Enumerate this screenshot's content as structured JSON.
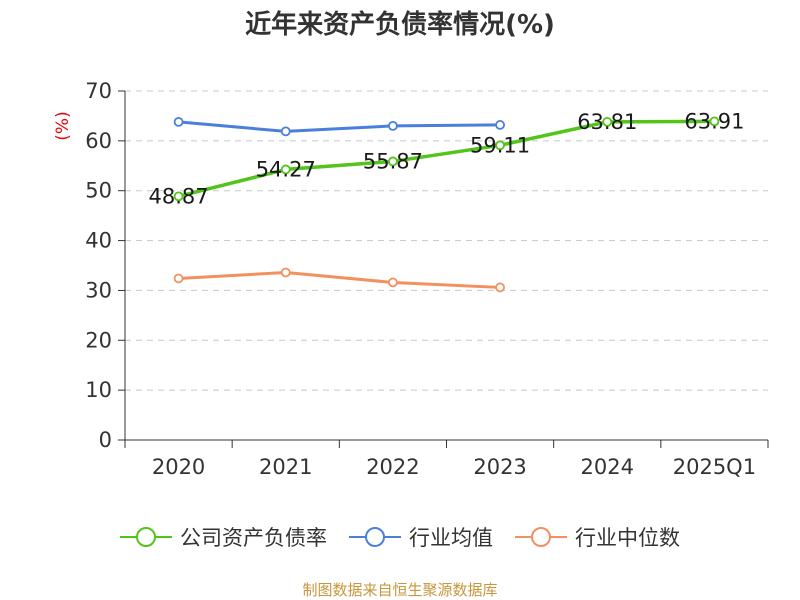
{
  "chart_data": {
    "type": "line",
    "title": "近年来资产负债率情况(%)",
    "ylabel": "(%)",
    "xlabel": "",
    "categories": [
      "2020",
      "2021",
      "2022",
      "2023",
      "2024",
      "2025Q1"
    ],
    "ylim": [
      0,
      70
    ],
    "yticks": [
      0,
      10,
      20,
      30,
      40,
      50,
      60,
      70
    ],
    "grid": true,
    "legend_position": "bottom",
    "series": [
      {
        "name": "公司资产负债率",
        "color": "#52c41a",
        "values": [
          48.87,
          54.27,
          55.87,
          59.11,
          63.81,
          63.91
        ],
        "labels": [
          "48.87",
          "54.27",
          "55.87",
          "59.11",
          "63.81",
          "63.91"
        ]
      },
      {
        "name": "行业均值",
        "color": "#4a7fdb",
        "values": [
          63.8,
          61.9,
          63.0,
          63.2,
          null,
          null
        ]
      },
      {
        "name": "行业中位数",
        "color": "#f39060",
        "values": [
          32.4,
          33.6,
          31.6,
          30.6,
          null,
          null
        ]
      }
    ],
    "source": "制图数据来自恒生聚源数据库"
  }
}
